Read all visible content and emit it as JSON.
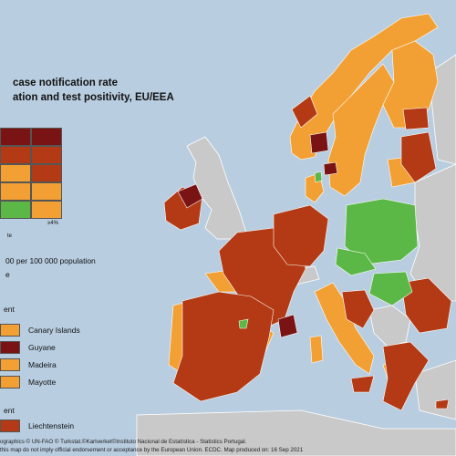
{
  "title_line1": "case notification rate",
  "title_line2": "ation and test positivity, EU/EEA",
  "legend": {
    "matrix_colors": [
      [
        "#7a1414",
        "#7a1414"
      ],
      [
        "#b33a14",
        "#b33a14"
      ],
      [
        "#f2a033",
        "#b33a14"
      ],
      [
        "#f2a033",
        "#f2a033"
      ],
      [
        "#5cb846",
        "#f2a033"
      ]
    ],
    "axis_label": "≥4%",
    "under_label": "te",
    "rate_text": "00 per 100 000 population",
    "rate_text2": "e",
    "outermost_heading": "ent",
    "outermost_regions": [
      {
        "name": "Canary Islands",
        "color": "#f2a033"
      },
      {
        "name": "Guyane",
        "color": "#7a1414"
      },
      {
        "name": "Madeira",
        "color": "#f2a033"
      },
      {
        "name": "Mayotte",
        "color": "#f2a033"
      }
    ],
    "other_heading": "ent",
    "other_regions": [
      {
        "name": "Liechtenstein",
        "color": "#b33a14"
      }
    ]
  },
  "colors": {
    "sea": "#b8cde0",
    "non_eu": "#c9c9c9",
    "green": "#5cb846",
    "orange": "#f2a033",
    "red": "#b33a14",
    "dark_red": "#7a1414"
  },
  "footer_line1": "ographics © UN-FAO © Turkstat.©Kartverket©Instituto Nacional de Estatística - Statistics Portugal.",
  "footer_line2": "this map do not imply official endorsement or acceptance by the European Union. ECDC. Map produced on: 16 Sep 2021"
}
